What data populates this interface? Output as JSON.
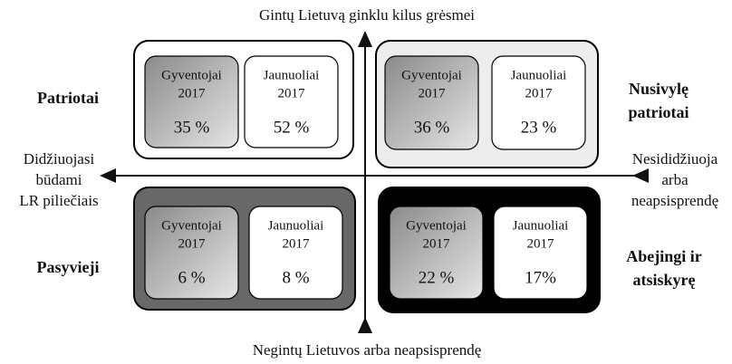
{
  "axes": {
    "top": "Gintų Lietuvą ginklu kilus grėsmei",
    "bottom": "Negintų Lietuvos arba neapsisprendę",
    "left": [
      "Didžiuojasi",
      "būdami",
      "LR piliečiais"
    ],
    "right": [
      "Nesididžiuoja",
      "arba",
      "neapsisprendę"
    ]
  },
  "quadrants": [
    {
      "name": [
        "Patriotai"
      ],
      "boxes": [
        {
          "label": "Gyventojai",
          "year": "2017",
          "value": "35 %"
        },
        {
          "label": "Jaunuoliai",
          "year": "2017",
          "value": "52 %"
        }
      ]
    },
    {
      "name": [
        "Nusivylę",
        "patriotai"
      ],
      "boxes": [
        {
          "label": "Gyventojai",
          "year": "2017",
          "value": "36 %"
        },
        {
          "label": "Jaunuoliai",
          "year": "2017",
          "value": "23 %"
        }
      ]
    },
    {
      "name": [
        "Pasyvieji"
      ],
      "boxes": [
        {
          "label": "Gyventojai",
          "year": "2017",
          "value": "6 %"
        },
        {
          "label": "Jaunuoliai",
          "year": "2017",
          "value": "8 %"
        }
      ]
    },
    {
      "name": [
        "Abejingi ir",
        "atsiskyrę"
      ],
      "boxes": [
        {
          "label": "Gyventojai",
          "year": "2017",
          "value": "22 %"
        },
        {
          "label": "Jaunuoliai",
          "year": "2017",
          "value": "17%"
        }
      ]
    }
  ]
}
